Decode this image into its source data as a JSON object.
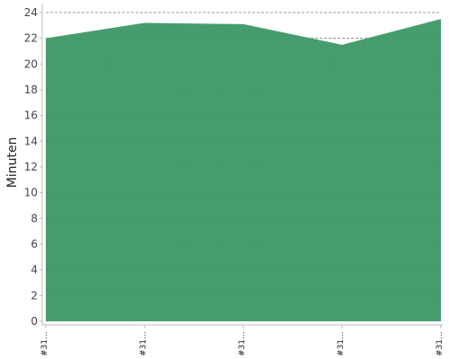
{
  "chart_data": {
    "type": "area",
    "categories": [
      "#31...",
      "#31...",
      "#31...",
      "#31...",
      "#31..."
    ],
    "values": [
      22.0,
      23.2,
      23.1,
      21.5,
      23.5
    ],
    "ylabel": "Minuten",
    "xlabel": "",
    "title": "",
    "ylim": [
      0,
      24
    ],
    "yticks": [
      0,
      2,
      4,
      6,
      8,
      10,
      12,
      14,
      16,
      18,
      20,
      22,
      24
    ],
    "grid": true,
    "legend": "none",
    "colors": {
      "fill": "#3f9a69",
      "line": "#3f9a69"
    }
  }
}
